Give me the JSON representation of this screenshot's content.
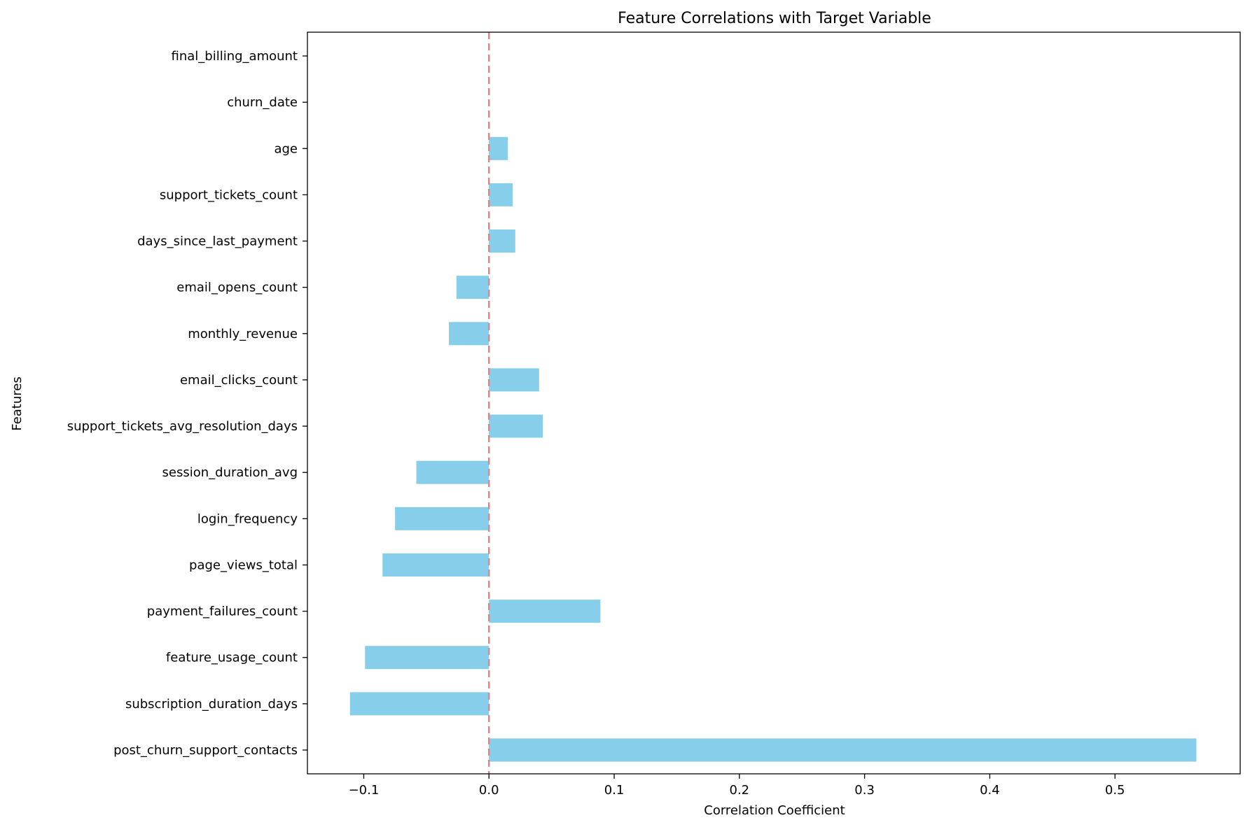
{
  "chart_data": {
    "type": "bar",
    "orientation": "horizontal",
    "title": "Feature Correlations with Target Variable",
    "xlabel": "Correlation Coefficient",
    "ylabel": "Features",
    "xlim": [
      -0.145,
      0.6
    ],
    "xticks": [
      -0.1,
      0.0,
      0.1,
      0.2,
      0.3,
      0.4,
      0.5
    ],
    "xtick_labels": [
      "−0.1",
      "0.0",
      "0.1",
      "0.2",
      "0.3",
      "0.4",
      "0.5"
    ],
    "reference_line": {
      "x": 0,
      "style": "dashed"
    },
    "grid": false,
    "categories": [
      "post_churn_support_contacts",
      "subscription_duration_days",
      "feature_usage_count",
      "payment_failures_count",
      "page_views_total",
      "login_frequency",
      "session_duration_avg",
      "support_tickets_avg_resolution_days",
      "email_clicks_count",
      "monthly_revenue",
      "email_opens_count",
      "days_since_last_payment",
      "support_tickets_count",
      "age",
      "churn_date",
      "final_billing_amount"
    ],
    "values": [
      0.565,
      -0.111,
      -0.099,
      0.089,
      -0.085,
      -0.075,
      -0.058,
      0.043,
      0.04,
      -0.032,
      -0.026,
      0.021,
      0.019,
      0.015,
      0.0,
      0.0
    ],
    "colors": {
      "bar": "#87ceeb",
      "reference_line": "#f08080",
      "axis": "#000000"
    }
  }
}
